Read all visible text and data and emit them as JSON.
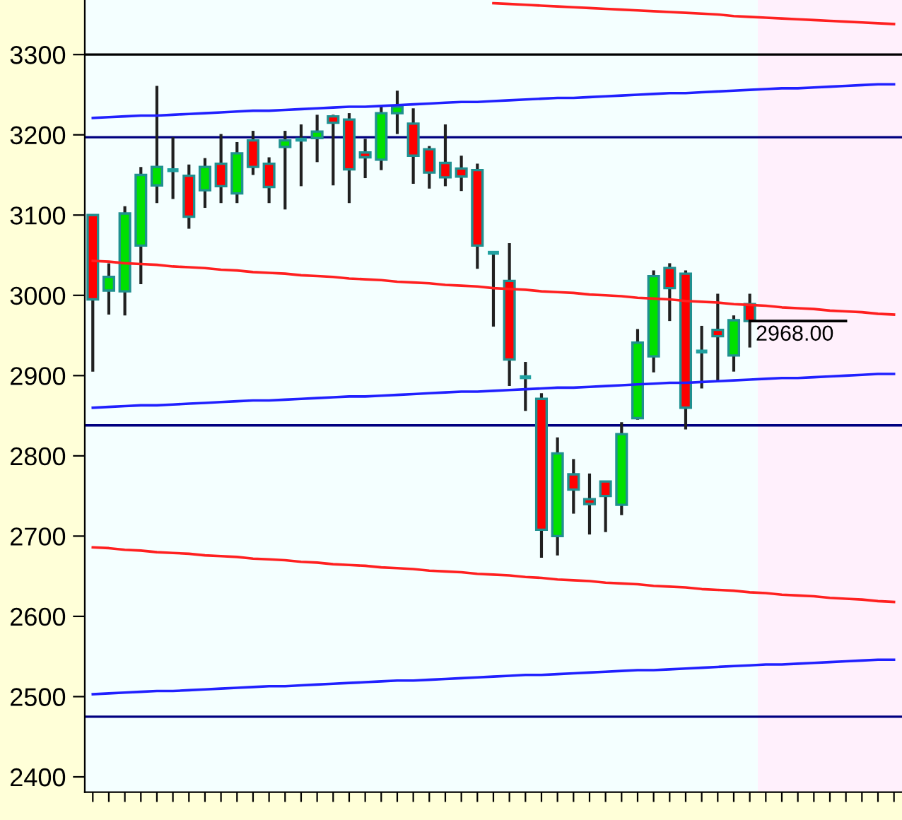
{
  "chart_data": {
    "type": "candlestick",
    "categories": [
      null,
      null,
      null,
      null,
      null,
      null,
      null,
      null,
      null,
      null,
      null,
      null,
      null,
      null,
      null,
      null,
      null,
      null,
      null,
      null,
      null,
      null,
      null,
      null,
      null,
      null,
      null,
      null,
      null,
      null,
      null,
      null,
      null,
      null,
      null,
      null,
      null,
      null,
      null,
      null,
      null,
      null,
      null,
      null,
      null,
      null,
      null,
      null,
      null,
      null,
      null
    ],
    "ohlc": [
      [
        3100,
        3100,
        2905,
        2995
      ],
      [
        3006,
        3040,
        2976,
        3023
      ],
      [
        3005,
        3111,
        2975,
        3102
      ],
      [
        3062,
        3160,
        3014,
        3150
      ],
      [
        3137,
        3261,
        3115,
        3160
      ],
      [
        3156,
        3197,
        3120,
        3156
      ],
      [
        3149,
        3163,
        3083,
        3098
      ],
      [
        3131,
        3171,
        3109,
        3160
      ],
      [
        3164,
        3201,
        3115,
        3136
      ],
      [
        3127,
        3191,
        3115,
        3177
      ],
      [
        3193,
        3205,
        3150,
        3160
      ],
      [
        3164,
        3172,
        3115,
        3135
      ],
      [
        3185,
        3205,
        3107,
        3193
      ],
      [
        3194,
        3213,
        3136,
        3194
      ],
      [
        3196,
        3225,
        3166,
        3204
      ],
      [
        3223,
        3225,
        3137,
        3215
      ],
      [
        3219,
        3227,
        3115,
        3157
      ],
      [
        3178,
        3195,
        3146,
        3172
      ],
      [
        3169,
        3236,
        3156,
        3227
      ],
      [
        3227,
        3255,
        3201,
        3235
      ],
      [
        3214,
        3233,
        3139,
        3174
      ],
      [
        3182,
        3186,
        3133,
        3153
      ],
      [
        3165,
        3213,
        3136,
        3147
      ],
      [
        3158,
        3174,
        3130,
        3148
      ],
      [
        3156,
        3164,
        3033,
        3062
      ],
      [
        3053,
        3054,
        2961,
        3053
      ],
      [
        3018,
        3065,
        2887,
        2920
      ],
      [
        2898,
        2917,
        2856,
        2898
      ],
      [
        2871,
        2878,
        2673,
        2708
      ],
      [
        2700,
        2823,
        2676,
        2803
      ],
      [
        2777,
        2796,
        2728,
        2758
      ],
      [
        2746,
        2778,
        2702,
        2740
      ],
      [
        2768,
        2768,
        2705,
        2750
      ],
      [
        2739,
        2842,
        2726,
        2827
      ],
      [
        2847,
        2958,
        2845,
        2941
      ],
      [
        2924,
        3031,
        2904,
        3024
      ],
      [
        3034,
        3040,
        2968,
        3009
      ],
      [
        3027,
        3031,
        2833,
        2860
      ],
      [
        2930,
        2962,
        2884,
        2930
      ],
      [
        2957,
        3002,
        2893,
        2949
      ],
      [
        2925,
        2975,
        2905,
        2969
      ],
      [
        2989,
        3002,
        2935,
        2968
      ],
      null,
      null,
      null,
      null,
      null,
      null,
      null,
      null,
      null
    ],
    "colors": [
      "#ff0000",
      "#00e000",
      "#00e000",
      "#00e000",
      "#00e000",
      "#20a0a0",
      "#ff0000",
      "#00e000",
      "#ff0000",
      "#00e000",
      "#ff0000",
      "#ff0000",
      "#00e000",
      "#20a0a0",
      "#00e000",
      "#ff0000",
      "#ff0000",
      "#ff0000",
      "#00e000",
      "#00e000",
      "#ff0000",
      "#ff0000",
      "#ff0000",
      "#ff0000",
      "#ff0000",
      "#20a0a0",
      "#ff0000",
      "#20a0a0",
      "#ff0000",
      "#00e000",
      "#ff0000",
      "#ff0000",
      "#ff0000",
      "#00e000",
      "#00e000",
      "#00e000",
      "#ff0000",
      "#ff0000",
      "#20a0a0",
      "#ff0000",
      "#00e000",
      "#ff0000",
      null,
      null,
      null,
      null,
      null,
      null,
      null,
      null,
      null
    ],
    "series": [
      {
        "type": "line",
        "color": "#2020ff",
        "values": [
          3221,
          3222,
          3223,
          3224,
          3224,
          3225,
          3226,
          3227,
          3228,
          3229,
          3230,
          3230,
          3231,
          3232,
          3233,
          3234,
          3235,
          3235,
          3236,
          3237,
          3238,
          3239,
          3240,
          3241,
          3241,
          3242,
          3243,
          3244,
          3245,
          3246,
          3246,
          3247,
          3248,
          3249,
          3250,
          3251,
          3252,
          3252,
          3253,
          3254,
          3255,
          3256,
          3257,
          3258,
          3258,
          3259,
          3260,
          3261,
          3262,
          3263,
          3263
        ]
      },
      {
        "type": "line",
        "color": "#2020ff",
        "values": [
          2860,
          2861,
          2862,
          2863,
          2863,
          2864,
          2865,
          2866,
          2867,
          2868,
          2869,
          2869,
          2870,
          2871,
          2872,
          2873,
          2874,
          2874,
          2875,
          2876,
          2877,
          2878,
          2879,
          2880,
          2880,
          2881,
          2882,
          2883,
          2884,
          2885,
          2885,
          2886,
          2887,
          2888,
          2889,
          2890,
          2891,
          2891,
          2892,
          2893,
          2894,
          2895,
          2896,
          2897,
          2897,
          2898,
          2899,
          2900,
          2901,
          2902,
          2902
        ]
      },
      {
        "type": "line",
        "color": "#2020ff",
        "values": [
          2503,
          2504,
          2505,
          2506,
          2507,
          2507,
          2508,
          2509,
          2510,
          2511,
          2512,
          2513,
          2513,
          2514,
          2515,
          2516,
          2517,
          2518,
          2519,
          2520,
          2520,
          2521,
          2522,
          2523,
          2524,
          2525,
          2526,
          2527,
          2527,
          2528,
          2529,
          2530,
          2531,
          2532,
          2533,
          2533,
          2534,
          2535,
          2536,
          2537,
          2538,
          2539,
          2540,
          2540,
          2541,
          2542,
          2543,
          2544,
          2545,
          2546,
          2546
        ]
      },
      {
        "type": "line",
        "color": "#ff2020",
        "values": [
          null,
          null,
          null,
          null,
          null,
          null,
          null,
          null,
          null,
          null,
          null,
          null,
          null,
          null,
          null,
          null,
          null,
          null,
          null,
          null,
          null,
          null,
          null,
          null,
          null,
          3364,
          3363,
          3362,
          3361,
          3360,
          3359,
          3358,
          3357,
          3356,
          3355,
          3354,
          3353,
          3352,
          3351,
          3350,
          3348,
          3347,
          3346,
          3345,
          3344,
          3343,
          3342,
          3341,
          3340,
          3339,
          3338
        ]
      },
      {
        "type": "line",
        "color": "#ff2020",
        "values": [
          3043,
          3042,
          3040,
          3039,
          3038,
          3036,
          3035,
          3034,
          3032,
          3031,
          3029,
          3028,
          3027,
          3025,
          3024,
          3023,
          3021,
          3020,
          3019,
          3017,
          3016,
          3015,
          3013,
          3012,
          3011,
          3009,
          3008,
          3007,
          3005,
          3004,
          3003,
          3001,
          3000,
          2999,
          2997,
          2996,
          2995,
          2993,
          2992,
          2991,
          2989,
          2988,
          2987,
          2985,
          2984,
          2983,
          2981,
          2980,
          2979,
          2977,
          2976
        ]
      },
      {
        "type": "line",
        "color": "#ff2020",
        "values": [
          2686,
          2685,
          2683,
          2682,
          2680,
          2679,
          2678,
          2676,
          2675,
          2674,
          2672,
          2671,
          2670,
          2668,
          2667,
          2665,
          2664,
          2663,
          2661,
          2660,
          2659,
          2657,
          2656,
          2655,
          2653,
          2652,
          2651,
          2649,
          2648,
          2646,
          2645,
          2644,
          2642,
          2641,
          2640,
          2638,
          2637,
          2636,
          2634,
          2633,
          2632,
          2630,
          2629,
          2627,
          2626,
          2625,
          2623,
          2622,
          2621,
          2619,
          2618
        ]
      },
      {
        "type": "line",
        "color": "#000000",
        "values": [
          null,
          null,
          null,
          null,
          null,
          null,
          null,
          null,
          null,
          null,
          null,
          null,
          null,
          null,
          null,
          null,
          null,
          null,
          null,
          null,
          null,
          null,
          null,
          null,
          null,
          null,
          null,
          null,
          null,
          null,
          null,
          null,
          null,
          null,
          null,
          null,
          null,
          null,
          null,
          null,
          null,
          2968,
          2968,
          2968,
          2968,
          2968,
          2968,
          2968,
          null,
          null,
          null
        ]
      }
    ],
    "ref_lines": [
      {
        "axis": "y",
        "value": 3300,
        "color": "#000000"
      },
      {
        "axis": "y",
        "value": 3197,
        "color": "#000080"
      },
      {
        "axis": "y",
        "value": 2838,
        "color": "#000080"
      },
      {
        "axis": "y",
        "value": 2475,
        "color": "#000080"
      }
    ],
    "annotations": [
      {
        "text": "2968.00",
        "y": 2968
      }
    ],
    "ylim": [
      2381,
      3368
    ],
    "yticks": [
      2400,
      2500,
      2600,
      2700,
      2800,
      2900,
      3000,
      3100,
      3200,
      3300
    ],
    "tick_labels": "y",
    "grid": false,
    "legend": false
  }
}
